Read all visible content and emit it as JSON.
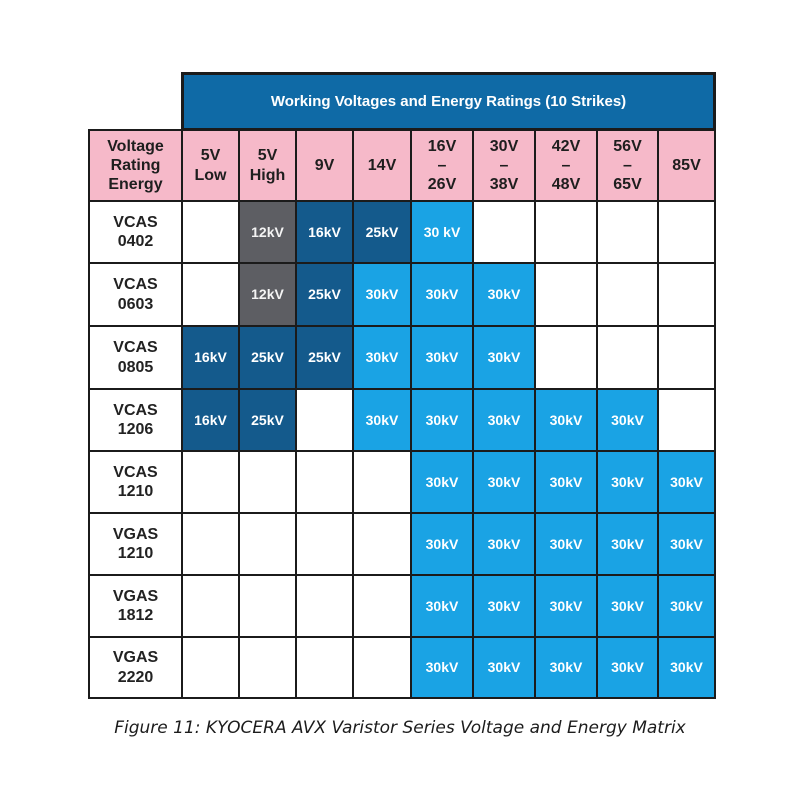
{
  "title": "Working Voltages and Energy Ratings (10 Strikes)",
  "corner_header": "Voltage\nRating\nEnergy",
  "columns": [
    "5V\nLow",
    "5V\nHigh",
    "9V",
    "14V",
    "16V\n–\n26V",
    "30V\n–\n38V",
    "42V\n–\n48V",
    "56V\n–\n65V",
    "85V"
  ],
  "colors": {
    "white": "#ffffff",
    "gray": "#5d5e63",
    "dark": "#145a8c",
    "light": "#1aa3e4",
    "header_pink": "#f6b9c9",
    "title_blue": "#0f6aa6"
  },
  "rows": [
    {
      "label": "VCAS\n0402",
      "cells": [
        [
          "",
          ""
        ],
        [
          "12kV",
          "gray"
        ],
        [
          "16kV",
          "dark"
        ],
        [
          "25kV",
          "dark"
        ],
        [
          "30 kV",
          "light"
        ],
        [
          "",
          ""
        ],
        [
          "",
          ""
        ],
        [
          "",
          ""
        ],
        [
          "",
          ""
        ]
      ]
    },
    {
      "label": "VCAS\n0603",
      "cells": [
        [
          "",
          ""
        ],
        [
          "12kV",
          "gray"
        ],
        [
          "25kV",
          "dark"
        ],
        [
          "30kV",
          "light"
        ],
        [
          "30kV",
          "light"
        ],
        [
          "30kV",
          "light"
        ],
        [
          "",
          ""
        ],
        [
          "",
          ""
        ],
        [
          "",
          ""
        ]
      ]
    },
    {
      "label": "VCAS\n0805",
      "cells": [
        [
          "16kV",
          "dark"
        ],
        [
          "25kV",
          "dark"
        ],
        [
          "25kV",
          "dark"
        ],
        [
          "30kV",
          "light"
        ],
        [
          "30kV",
          "light"
        ],
        [
          "30kV",
          "light"
        ],
        [
          "",
          ""
        ],
        [
          "",
          ""
        ],
        [
          "",
          ""
        ]
      ]
    },
    {
      "label": "VCAS\n1206",
      "cells": [
        [
          "16kV",
          "dark"
        ],
        [
          "25kV",
          "dark"
        ],
        [
          "",
          ""
        ],
        [
          "30kV",
          "light"
        ],
        [
          "30kV",
          "light"
        ],
        [
          "30kV",
          "light"
        ],
        [
          "30kV",
          "light"
        ],
        [
          "30kV",
          "light"
        ],
        [
          "",
          ""
        ]
      ]
    },
    {
      "label": "VCAS\n1210",
      "cells": [
        [
          "",
          ""
        ],
        [
          "",
          ""
        ],
        [
          "",
          ""
        ],
        [
          "",
          ""
        ],
        [
          "30kV",
          "light"
        ],
        [
          "30kV",
          "light"
        ],
        [
          "30kV",
          "light"
        ],
        [
          "30kV",
          "light"
        ],
        [
          "30kV",
          "light"
        ]
      ]
    },
    {
      "label": "VGAS\n1210",
      "cells": [
        [
          "",
          ""
        ],
        [
          "",
          ""
        ],
        [
          "",
          ""
        ],
        [
          "",
          ""
        ],
        [
          "30kV",
          "light"
        ],
        [
          "30kV",
          "light"
        ],
        [
          "30kV",
          "light"
        ],
        [
          "30kV",
          "light"
        ],
        [
          "30kV",
          "light"
        ]
      ]
    },
    {
      "label": "VGAS\n1812",
      "cells": [
        [
          "",
          ""
        ],
        [
          "",
          ""
        ],
        [
          "",
          ""
        ],
        [
          "",
          ""
        ],
        [
          "30kV",
          "light"
        ],
        [
          "30kV",
          "light"
        ],
        [
          "30kV",
          "light"
        ],
        [
          "30kV",
          "light"
        ],
        [
          "30kV",
          "light"
        ]
      ]
    },
    {
      "label": "VGAS\n2220",
      "cells": [
        [
          "",
          ""
        ],
        [
          "",
          ""
        ],
        [
          "",
          ""
        ],
        [
          "",
          ""
        ],
        [
          "30kV",
          "light"
        ],
        [
          "30kV",
          "light"
        ],
        [
          "30kV",
          "light"
        ],
        [
          "30kV",
          "light"
        ],
        [
          "30kV",
          "light"
        ]
      ]
    }
  ],
  "caption": "Figure 11: KYOCERA AVX Varistor Series Voltage and Energy Matrix"
}
